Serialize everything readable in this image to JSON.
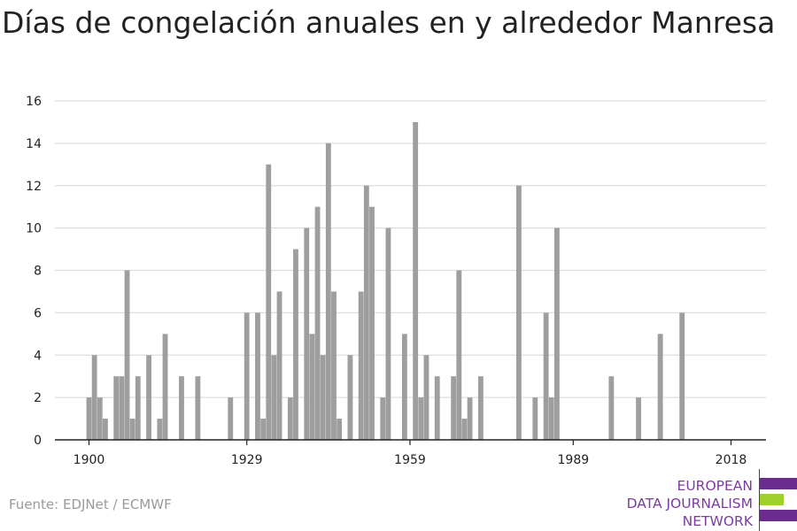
{
  "title": "Días de congelación anuales en y alrededor Manresa",
  "source": "Fuente: EDJNet / ECMWF",
  "logo": {
    "lines": [
      "EUROPEAN",
      "DATA JOURNALISM",
      "NETWORK"
    ],
    "colors": {
      "purple": "#6b2c8f",
      "green": "#9ed12b"
    }
  },
  "colors": {
    "bar": "#9e9e9e",
    "grid": "#dddddd",
    "axis": "#222222",
    "text": "#222222"
  },
  "chart_data": {
    "type": "bar",
    "x": [
      1900,
      1901,
      1902,
      1903,
      1905,
      1906,
      1907,
      1908,
      1909,
      1911,
      1913,
      1914,
      1917,
      1920,
      1926,
      1929,
      1931,
      1932,
      1933,
      1934,
      1935,
      1937,
      1938,
      1940,
      1941,
      1942,
      1943,
      1944,
      1945,
      1946,
      1948,
      1950,
      1951,
      1952,
      1954,
      1955,
      1958,
      1960,
      1961,
      1962,
      1964,
      1967,
      1968,
      1969,
      1970,
      1972,
      1979,
      1982,
      1984,
      1985,
      1986,
      1996,
      2001,
      2005,
      2009,
      2010,
      2012
    ],
    "values": [
      2,
      4,
      2,
      1,
      3,
      3,
      8,
      1,
      3,
      4,
      1,
      5,
      3,
      3,
      2,
      6,
      6,
      1,
      13,
      4,
      7,
      2,
      9,
      10,
      5,
      11,
      4,
      14,
      7,
      1,
      4,
      7,
      12,
      11,
      2,
      10,
      5,
      15,
      2,
      4,
      3,
      3,
      8,
      1,
      2,
      3,
      12,
      2,
      6,
      2,
      10,
      3,
      2,
      5,
      6,
      0,
      0
    ],
    "xticks": [
      "1900",
      "1929",
      "1959",
      "1989",
      "2018"
    ],
    "yticks": [
      "0",
      "2",
      "4",
      "6",
      "8",
      "10",
      "12",
      "14",
      "16"
    ],
    "xlim": [
      1900,
      2018
    ],
    "ylim": [
      0,
      16
    ],
    "xlabel": "",
    "ylabel": "",
    "grid": true
  }
}
